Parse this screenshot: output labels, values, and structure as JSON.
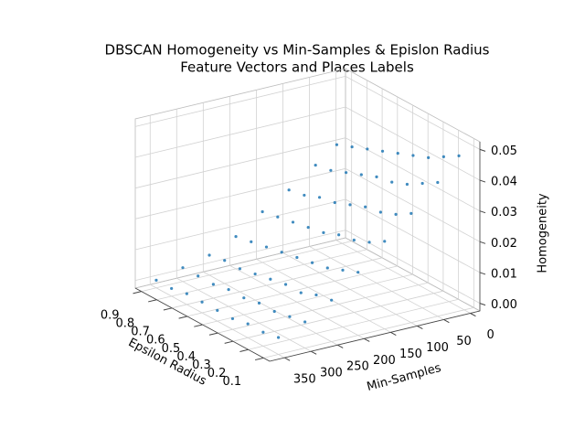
{
  "chart_data": {
    "type": "scatter3d",
    "title": "DBSCAN Homogeneity vs Min-Samples & Epislon Radius",
    "subtitle": "Feature Vectors and Places Labels",
    "xlabel": "Epsilon Radius",
    "ylabel": "Min-Samples",
    "zlabel": "Homogeneity",
    "color": "#1f77b4",
    "xlim": [
      0.06,
      0.94
    ],
    "ylim": [
      -18,
      378
    ],
    "zlim": [
      -0.0025,
      0.0525
    ],
    "xticks": [
      0.1,
      0.2,
      0.3,
      0.4,
      0.5,
      0.6,
      0.7,
      0.8,
      0.9
    ],
    "yticks": [
      0,
      50,
      100,
      150,
      200,
      250,
      300,
      350
    ],
    "zticks": [
      {
        "value": 0,
        "label": "0.00"
      },
      0.01,
      0.02,
      0.03,
      0.04,
      0.05
    ],
    "grid": true,
    "x": [
      0.1,
      0.1,
      0.1,
      0.1,
      0.1,
      0.1,
      0.1,
      0.1,
      0.2,
      0.2,
      0.2,
      0.2,
      0.2,
      0.2,
      0.2,
      0.2,
      0.3,
      0.3,
      0.3,
      0.3,
      0.3,
      0.3,
      0.3,
      0.3,
      0.4,
      0.4,
      0.4,
      0.4,
      0.4,
      0.4,
      0.4,
      0.4,
      0.5,
      0.5,
      0.5,
      0.5,
      0.5,
      0.5,
      0.5,
      0.5,
      0.6,
      0.6,
      0.6,
      0.6,
      0.6,
      0.6,
      0.6,
      0.6,
      0.7,
      0.7,
      0.7,
      0.7,
      0.7,
      0.7,
      0.7,
      0.7,
      0.8,
      0.8,
      0.8,
      0.8,
      0.8,
      0.8,
      0.8,
      0.8,
      0.9,
      0.9,
      0.9,
      0.9,
      0.9,
      0.9,
      0.9,
      0.9
    ],
    "y": [
      10,
      50,
      100,
      150,
      200,
      250,
      300,
      350,
      10,
      50,
      100,
      150,
      200,
      250,
      300,
      350,
      10,
      50,
      100,
      150,
      200,
      250,
      300,
      350,
      10,
      50,
      100,
      150,
      200,
      250,
      300,
      350,
      10,
      50,
      100,
      150,
      200,
      250,
      300,
      350,
      10,
      50,
      100,
      150,
      200,
      250,
      300,
      350,
      10,
      50,
      100,
      150,
      200,
      250,
      300,
      350,
      10,
      50,
      100,
      150,
      200,
      250,
      300,
      350,
      10,
      50,
      100,
      150,
      200,
      250,
      300,
      350
    ],
    "z": [
      0.048,
      0.041,
      0.033,
      0.026,
      0.018,
      0.011,
      0.006,
      0.003,
      0.045,
      0.038,
      0.03,
      0.023,
      0.016,
      0.01,
      0.005,
      0.002,
      0.042,
      0.035,
      0.028,
      0.021,
      0.014,
      0.008,
      0.004,
      0.002,
      0.04,
      0.033,
      0.027,
      0.02,
      0.013,
      0.008,
      0.004,
      0.001,
      0.038,
      0.032,
      0.025,
      0.018,
      0.012,
      0.007,
      0.003,
      0.001,
      0.036,
      0.03,
      0.023,
      0.017,
      0.011,
      0.006,
      0.003,
      0.001,
      0.034,
      0.028,
      0.022,
      0.016,
      0.01,
      0.005,
      0.002,
      0.001,
      0.032,
      0.026,
      0.02,
      0.015,
      0.009,
      0.005,
      0.002,
      0.0,
      0.03,
      0.025,
      0.019,
      0.014,
      0.008,
      0.004,
      0.002,
      0.0
    ]
  }
}
